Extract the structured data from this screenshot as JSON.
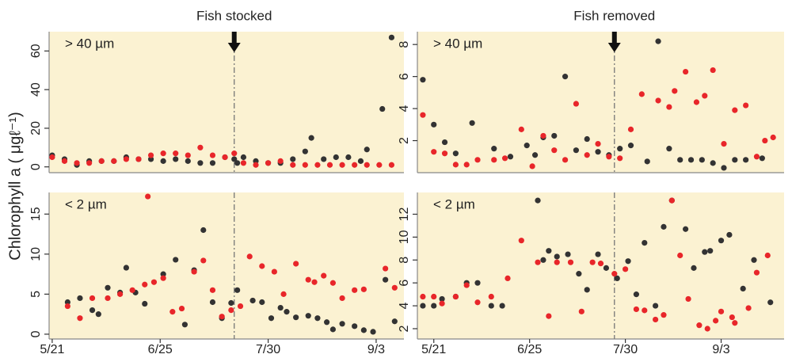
{
  "ylabel": "Chlorophyll a ( μgℓ⁻¹)",
  "chart_data": [
    {
      "type": "scatter",
      "label": "> 40 µm",
      "annotation_text": "Fish stocked",
      "vline": 59,
      "background": "#fbf2d2",
      "xlim": [
        -1,
        114
      ],
      "ylim": [
        -3,
        70
      ],
      "yticks": [
        0,
        20,
        40,
        60
      ],
      "series": [
        {
          "color": "#333333",
          "x": [
            0,
            4,
            8,
            12,
            16,
            20,
            24,
            28,
            32,
            36,
            40,
            44,
            48,
            52,
            56,
            59,
            60,
            62,
            66,
            70,
            74,
            78,
            82,
            84,
            88,
            92,
            96,
            100,
            102,
            107,
            110
          ],
          "values": [
            6,
            4,
            1,
            3,
            3,
            3,
            5,
            4,
            4,
            3,
            4,
            3,
            2,
            2,
            5,
            4,
            2,
            5,
            3,
            2,
            2,
            4,
            8,
            15,
            4,
            5,
            5,
            3,
            9,
            30,
            67
          ]
        },
        {
          "color": "#e8262a",
          "x": [
            0,
            4,
            8,
            12,
            16,
            20,
            24,
            28,
            32,
            36,
            40,
            44,
            48,
            52,
            56,
            59,
            62,
            66,
            70,
            74,
            78,
            82,
            86,
            90,
            94,
            98,
            102,
            106,
            110
          ],
          "values": [
            5,
            3,
            2,
            2,
            3,
            3,
            4,
            4,
            6,
            7,
            7,
            6,
            10,
            6,
            5,
            7,
            2,
            1,
            2,
            3,
            1,
            1,
            1,
            1,
            1,
            1,
            1,
            1,
            1
          ]
        }
      ]
    },
    {
      "type": "scatter",
      "label": "> 40 µm",
      "annotation_text": "Fish removed",
      "vline": 66,
      "background": "#fbf2d2",
      "xlim": [
        -6,
        128
      ],
      "ylim": [
        0,
        8.8
      ],
      "yticks": [
        2,
        4,
        6,
        8
      ],
      "series": [
        {
          "color": "#333333",
          "x": [
            -4,
            0,
            4,
            8,
            14,
            22,
            28,
            34,
            37,
            40,
            44,
            48,
            52,
            56,
            60,
            64,
            68,
            72,
            78,
            82,
            86,
            90,
            94,
            98,
            102,
            106,
            110,
            114,
            120
          ],
          "values": [
            5.8,
            3,
            1.9,
            1.2,
            3.1,
            1.5,
            1.0,
            1.7,
            1.1,
            2.2,
            2.3,
            6,
            1.4,
            2.1,
            1.3,
            1.1,
            1.5,
            1.7,
            0.7,
            8.2,
            1.5,
            0.8,
            0.8,
            0.8,
            0.6,
            0.3,
            0.8,
            0.8,
            0.9
          ]
        },
        {
          "color": "#e8262a",
          "x": [
            -4,
            0,
            4,
            8,
            12,
            16,
            22,
            26,
            32,
            36,
            40,
            44,
            48,
            52,
            56,
            60,
            64,
            68,
            72,
            76,
            82,
            86,
            88,
            92,
            96,
            99,
            102,
            106,
            110,
            114,
            118,
            121,
            124
          ],
          "values": [
            3.6,
            1.3,
            1.2,
            0.5,
            0.5,
            0.8,
            0.8,
            0.9,
            2.7,
            0.4,
            2.3,
            1.4,
            0.8,
            4.3,
            1.1,
            1.8,
            1.0,
            0.9,
            2.7,
            4.9,
            4.5,
            4.1,
            5.1,
            6.3,
            4.4,
            4.8,
            6.4,
            1.8,
            3.9,
            4.2,
            1.0,
            2.0,
            2.2
          ]
        }
      ]
    },
    {
      "type": "scatter",
      "label": "< 2 µm",
      "vline": 59,
      "background": "#fbf2d2",
      "xlim": [
        -1,
        114
      ],
      "ylim": [
        -0.6,
        17.7
      ],
      "yticks": [
        0,
        5,
        10,
        15
      ],
      "xticks": [
        {
          "value": 0,
          "label": "5/21"
        },
        {
          "value": 35,
          "label": "6/25"
        },
        {
          "value": 70,
          "label": "7/30"
        },
        {
          "value": 105,
          "label": "9/3"
        }
      ],
      "series": [
        {
          "color": "#333333",
          "x": [
            5,
            9,
            13,
            15,
            18,
            22,
            24,
            27,
            30,
            36,
            40,
            43,
            46,
            49,
            52,
            55,
            58,
            60,
            65,
            68,
            71,
            74,
            76,
            79,
            83,
            86,
            89,
            91,
            94,
            98,
            101,
            104,
            108,
            111
          ],
          "values": [
            4,
            4.5,
            3,
            2.5,
            5.8,
            5.2,
            8.3,
            5.2,
            3.8,
            7.5,
            9.3,
            1.2,
            8,
            13,
            4,
            2,
            3.9,
            5.5,
            4.2,
            4,
            2,
            3.3,
            2.8,
            2.1,
            2.3,
            2,
            1.5,
            0.6,
            1.3,
            1,
            0.5,
            0.3,
            6.8,
            1.6
          ]
        },
        {
          "color": "#e8262a",
          "x": [
            5,
            9,
            13,
            18,
            22,
            26,
            30,
            31,
            33,
            36,
            39,
            42,
            46,
            49,
            52,
            55,
            58,
            61,
            64,
            68,
            72,
            75,
            79,
            83,
            85,
            88,
            91,
            94,
            98,
            101,
            108,
            111
          ],
          "values": [
            3.5,
            2,
            4.5,
            4.5,
            5,
            5.5,
            6.2,
            17.2,
            6.5,
            7,
            2.8,
            3.2,
            7.8,
            9.2,
            5.5,
            2.2,
            3,
            3.5,
            9.7,
            8.5,
            7.8,
            5,
            8.8,
            6.8,
            6.5,
            7.3,
            6.4,
            4.5,
            5.5,
            5.6,
            8.2,
            5.8
          ]
        }
      ]
    },
    {
      "type": "scatter",
      "label": "< 2 µm",
      "vline": 66,
      "background": "#fbf2d2",
      "xlim": [
        -6,
        128
      ],
      "ylim": [
        1.1,
        13.9
      ],
      "yticks": [
        2,
        4,
        6,
        8,
        10,
        12
      ],
      "xticks": [
        {
          "value": 0,
          "label": "5/21"
        },
        {
          "value": 35,
          "label": "6/25"
        },
        {
          "value": 70,
          "label": "7/30"
        },
        {
          "value": 105,
          "label": "9/3"
        }
      ],
      "series": [
        {
          "color": "#333333",
          "x": [
            -4,
            0,
            3,
            8,
            12,
            16,
            21,
            25,
            38,
            40,
            42,
            45,
            49,
            53,
            56,
            60,
            63,
            67,
            71,
            74,
            77,
            81,
            84,
            87,
            92,
            95,
            99,
            101,
            105,
            108,
            113,
            117,
            123
          ],
          "values": [
            4,
            4,
            4.6,
            4.8,
            6,
            6,
            4,
            4,
            13.2,
            8,
            8.8,
            8.3,
            8.5,
            6.8,
            5.4,
            8.5,
            7.3,
            6.4,
            7.9,
            5,
            9.5,
            4,
            10.9,
            13.2,
            10.7,
            7.3,
            8.7,
            8.8,
            9.7,
            10.2,
            5.5,
            8,
            4.3
          ]
        },
        {
          "color": "#e8262a",
          "x": [
            -4,
            0,
            3,
            8,
            12,
            16,
            21,
            27,
            32,
            38,
            42,
            45,
            50,
            54,
            58,
            61,
            66,
            70,
            74,
            77,
            81,
            84,
            87,
            90,
            93,
            97,
            100,
            103,
            105,
            109,
            110,
            115,
            118,
            122
          ],
          "values": [
            4.8,
            4.8,
            4.2,
            4.8,
            5.8,
            4.3,
            4.8,
            6.4,
            9.7,
            7.8,
            3.1,
            7.8,
            7.8,
            3.5,
            7.8,
            7.7,
            6.8,
            7.2,
            3.7,
            3.6,
            2.8,
            3.2,
            13.2,
            8.4,
            4.6,
            2.3,
            2,
            2.7,
            3.5,
            3,
            2.5,
            3.8,
            6.9,
            8.4
          ]
        }
      ]
    }
  ]
}
